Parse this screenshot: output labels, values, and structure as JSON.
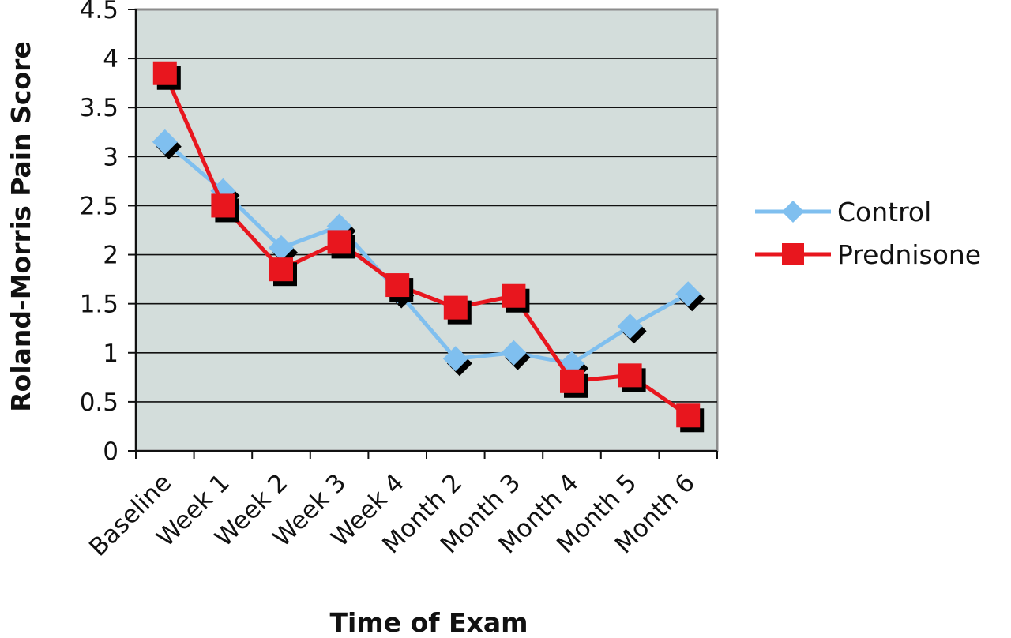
{
  "chart_data": {
    "type": "line",
    "title": "",
    "xlabel": "Time of Exam",
    "ylabel": "Roland-Morris Pain Score",
    "categories": [
      "Baseline",
      "Week 1",
      "Week 2",
      "Week 3",
      "Week 4",
      "Month 2",
      "Month 3",
      "Month 4",
      "Month 5",
      "Month 6"
    ],
    "ylim": [
      0,
      4.5
    ],
    "yticks": [
      "0",
      "0.5",
      "1",
      "1.5",
      "2",
      "2.5",
      "3",
      "3.5",
      "4",
      "4.5"
    ],
    "grid": true,
    "legend_position": "right",
    "series": [
      {
        "name": "Control",
        "marker": "diamond",
        "color": "#7fbfef",
        "values": [
          3.15,
          2.65,
          2.07,
          2.29,
          1.63,
          0.94,
          1.0,
          0.89,
          1.27,
          1.6
        ]
      },
      {
        "name": "Prednisone",
        "marker": "square",
        "color": "#e8161e",
        "values": [
          3.85,
          2.5,
          1.85,
          2.13,
          1.69,
          1.46,
          1.58,
          0.71,
          0.77,
          0.36
        ]
      }
    ]
  },
  "colors": {
    "plot_background": "#d3dddb",
    "gridline": "#111111",
    "shadow": "#000000"
  }
}
